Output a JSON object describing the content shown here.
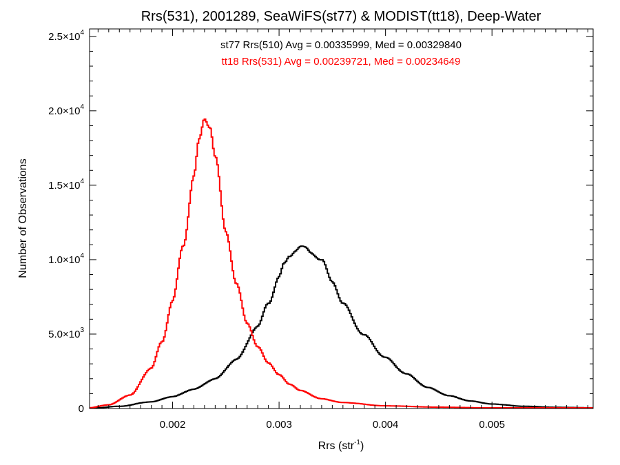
{
  "chart_data": {
    "type": "line",
    "title": "Rrs(531), 2001289, SeaWiFS(st77) & MODIST(tt18), Deep-Water",
    "xlabel": {
      "base": "Rrs (str",
      "sup": "-1",
      "tail": ")"
    },
    "ylabel": "Number of Observations",
    "xlim": [
      0.00122,
      0.00595
    ],
    "ylim": [
      0,
      25500
    ],
    "x_ticks": [
      {
        "value": 0.002,
        "label": "0.002"
      },
      {
        "value": 0.003,
        "label": "0.003"
      },
      {
        "value": 0.004,
        "label": "0.004"
      },
      {
        "value": 0.005,
        "label": "0.005"
      }
    ],
    "y_ticks": [
      {
        "value": 0,
        "mant": "0",
        "exp": ""
      },
      {
        "value": 5000,
        "mant": "5.0×10",
        "exp": "3"
      },
      {
        "value": 10000,
        "mant": "1.0×10",
        "exp": "4"
      },
      {
        "value": 15000,
        "mant": "1.5×10",
        "exp": "4"
      },
      {
        "value": 20000,
        "mant": "2.0×10",
        "exp": "4"
      },
      {
        "value": 25000,
        "mant": "2.5×10",
        "exp": "4"
      }
    ],
    "annotations": [
      {
        "text": "st77 Rrs(510) Avg = 0.00335999, Med = 0.00329840",
        "color": "#000000"
      },
      {
        "text": "tt18 Rrs(531) Avg = 0.00239721, Med = 0.00234649",
        "color": "#ff0000"
      }
    ],
    "series": [
      {
        "color": "#000000",
        "x": [
          0.00122,
          0.0015,
          0.0018,
          0.002,
          0.0022,
          0.0024,
          0.0026,
          0.0028,
          0.0029,
          0.003,
          0.00305,
          0.0031,
          0.00315,
          0.0032,
          0.00325,
          0.0033,
          0.0034,
          0.0035,
          0.0036,
          0.0038,
          0.004,
          0.0042,
          0.0044,
          0.0046,
          0.0048,
          0.005,
          0.0053,
          0.0056,
          0.00595
        ],
        "y": [
          0,
          150,
          450,
          800,
          1300,
          2000,
          3300,
          5500,
          7100,
          8800,
          9700,
          10300,
          10650,
          10800,
          10750,
          10550,
          9900,
          8600,
          7000,
          4900,
          3400,
          2300,
          1400,
          850,
          500,
          300,
          150,
          80,
          50
        ]
      },
      {
        "color": "#ff0000",
        "x": [
          0.00122,
          0.0014,
          0.0016,
          0.0018,
          0.0019,
          0.002,
          0.0021,
          0.0022,
          0.00225,
          0.0023,
          0.00235,
          0.0024,
          0.0025,
          0.0026,
          0.0027,
          0.0028,
          0.0029,
          0.003,
          0.0031,
          0.0032,
          0.0034,
          0.0036,
          0.004,
          0.0045,
          0.005,
          0.0055,
          0.00595
        ],
        "y": [
          50,
          250,
          900,
          2700,
          4500,
          7200,
          11000,
          15500,
          18000,
          19600,
          19000,
          16800,
          12000,
          8300,
          5800,
          4100,
          3100,
          2250,
          1650,
          1200,
          650,
          400,
          180,
          90,
          40,
          20,
          10
        ]
      }
    ],
    "grid": false,
    "legend": "none"
  }
}
